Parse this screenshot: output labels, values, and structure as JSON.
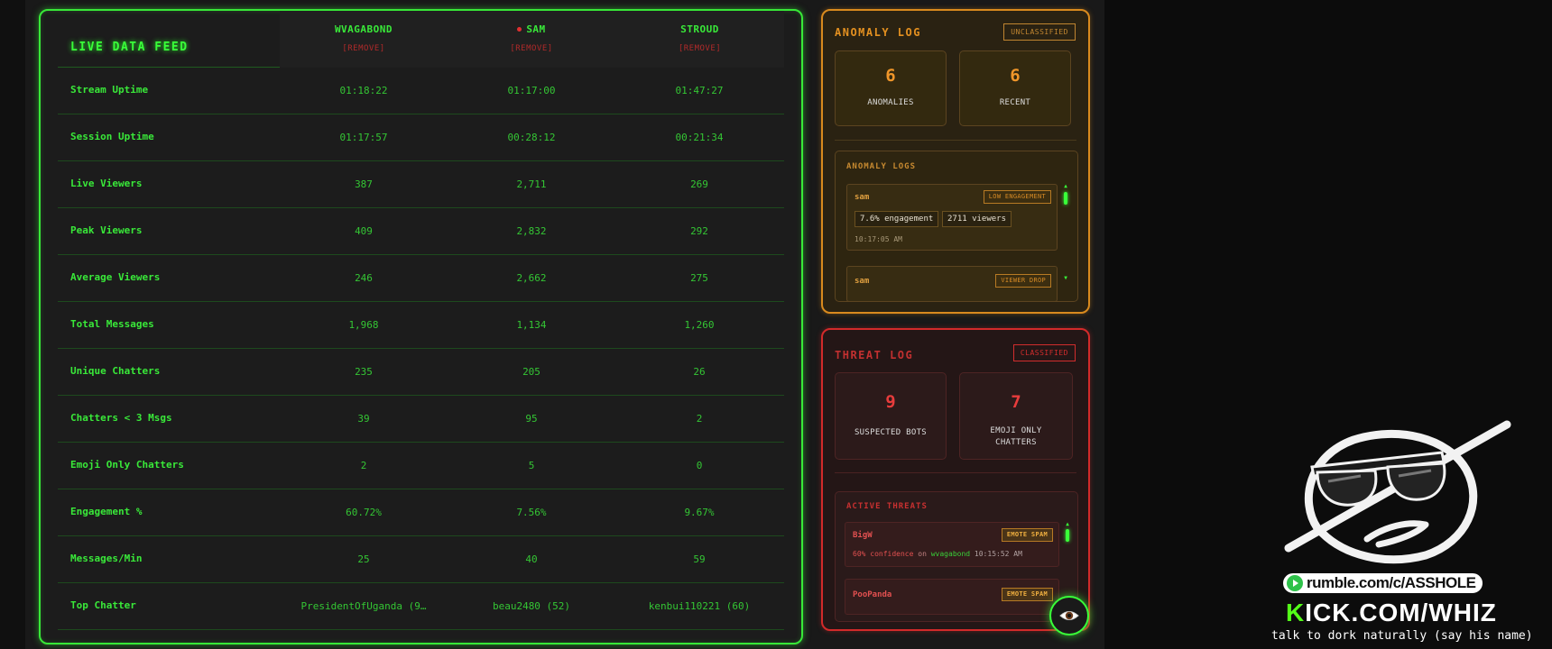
{
  "feed": {
    "title": "LIVE DATA FEED",
    "remove_label": "[REMOVE]",
    "streamers": [
      {
        "name": "WVAGABOND",
        "live": false
      },
      {
        "name": "SAM",
        "live": true
      },
      {
        "name": "STROUD",
        "live": false
      }
    ],
    "rows": [
      {
        "label": "Stream Uptime",
        "values": [
          "01:18:22",
          "01:17:00",
          "01:47:27"
        ]
      },
      {
        "label": "Session Uptime",
        "values": [
          "01:17:57",
          "00:28:12",
          "00:21:34"
        ]
      },
      {
        "label": "Live Viewers",
        "values": [
          "387",
          "2,711",
          "269"
        ]
      },
      {
        "label": "Peak Viewers",
        "values": [
          "409",
          "2,832",
          "292"
        ]
      },
      {
        "label": "Average Viewers",
        "values": [
          "246",
          "2,662",
          "275"
        ]
      },
      {
        "label": "Total Messages",
        "values": [
          "1,968",
          "1,134",
          "1,260"
        ]
      },
      {
        "label": "Unique Chatters",
        "values": [
          "235",
          "205",
          "26"
        ]
      },
      {
        "label": "Chatters < 3 Msgs",
        "values": [
          "39",
          "95",
          "2"
        ]
      },
      {
        "label": "Emoji Only Chatters",
        "values": [
          "2",
          "5",
          "0"
        ]
      },
      {
        "label": "Engagement %",
        "values": [
          "60.72%",
          "7.56%",
          "9.67%"
        ]
      },
      {
        "label": "Messages/Min",
        "values": [
          "25",
          "40",
          "59"
        ]
      },
      {
        "label": "Top Chatter",
        "values": [
          "PresidentOfUganda (9…",
          "beau2480 (52)",
          "kenbui110221 (60)"
        ]
      }
    ]
  },
  "anomaly": {
    "title": "ANOMALY LOG",
    "tag": "UNCLASSIFIED",
    "stats": [
      {
        "value": "6",
        "label": "ANOMALIES"
      },
      {
        "value": "6",
        "label": "RECENT"
      }
    ],
    "logs_title": "ANOMALY LOGS",
    "entries": [
      {
        "who": "sam",
        "tag": "LOW ENGAGEMENT",
        "pills": [
          "7.6% engagement",
          "2711 viewers"
        ],
        "time": "10:17:05 AM"
      },
      {
        "who": "sam",
        "tag": "VIEWER DROP"
      }
    ]
  },
  "threat": {
    "title": "THREAT LOG",
    "tag": "CLASSIFIED",
    "stats": [
      {
        "value": "9",
        "label": "SUSPECTED BOTS"
      },
      {
        "value": "7",
        "label": "EMOJI ONLY CHATTERS"
      }
    ],
    "logs_title": "ACTIVE THREATS",
    "entries": [
      {
        "who": "BigW",
        "tag": "EMOTE SPAM",
        "confidence": "60% confidence",
        "on": "on",
        "channel": "wvagabond",
        "time": "10:15:52 AM"
      },
      {
        "who": "PooPanda",
        "tag": "EMOTE SPAM"
      }
    ]
  },
  "overlay": {
    "rumble": "rumble.com/c/ASSHOLE",
    "kick_k": "K",
    "kick_rest": "ICK.COM/WHIZ",
    "tagline": "talk to dork naturally (say his name)"
  },
  "colors": {
    "feed_accent": "#39ff39",
    "anomaly_accent": "#e39020",
    "threat_accent": "#d22a2a",
    "kick_green": "#53fc18"
  },
  "icons": {
    "toggle_button": "eye-icon",
    "overlay_logo": "sunglasses-mascot-icon"
  }
}
